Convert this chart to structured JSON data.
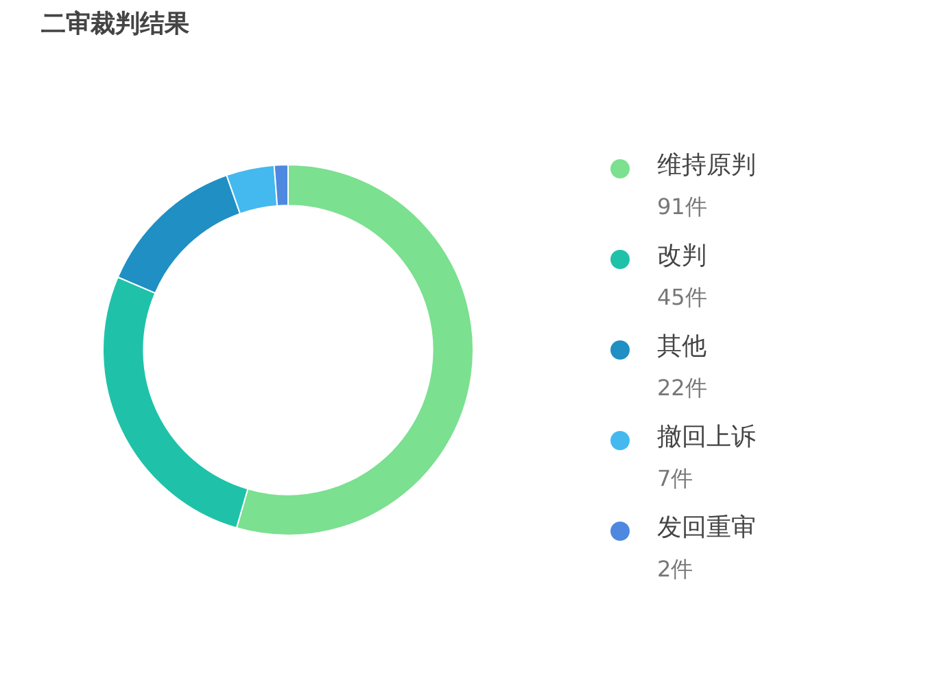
{
  "chart_data": {
    "type": "donut",
    "title": "二审裁判结果",
    "categories": [
      "维持原判",
      "改判",
      "其他",
      "撤回上诉",
      "发回重审"
    ],
    "values": [
      91,
      45,
      22,
      7,
      2
    ],
    "value_labels": [
      "91件",
      "45件",
      "22件",
      "7件",
      "2件"
    ],
    "colors": [
      "#7be08f",
      "#1fc2a8",
      "#1f8fc4",
      "#44b9ef",
      "#4e88e0"
    ],
    "legend": "right"
  }
}
